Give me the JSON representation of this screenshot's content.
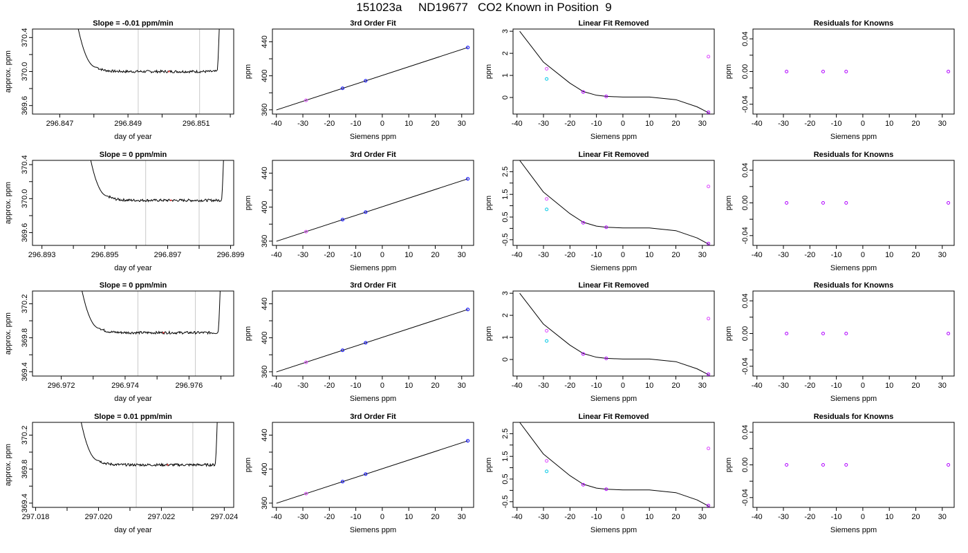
{
  "figure": {
    "title": "151023a     ND19677   CO2 Known in Position  9"
  },
  "colors": {
    "trace": "#000000",
    "vline": "#c8c8c8",
    "pt_blue": "#0000ff",
    "pt_purple": "#b000ff",
    "pt_cyan": "#00c8e6",
    "pt_magenta": "#dd44ff",
    "pt_red": "#ff4444"
  },
  "chart_data": [
    {
      "type": "line",
      "row": 1,
      "kind": "trace",
      "title": "Slope =  -0.01  ppm/min",
      "xlabel": "day of year",
      "ylabel": "approx. ppm",
      "xlim": [
        296.8462,
        296.8521
      ],
      "ylim": [
        369.5,
        370.5
      ],
      "xticks": [
        296.847,
        296.848,
        296.849,
        296.85,
        296.851,
        296.852
      ],
      "xticklabels": [
        "296.847",
        "",
        "296.849",
        "",
        "296.851",
        ""
      ],
      "yticks": [
        369.6,
        369.8,
        370.0,
        370.2,
        370.4
      ],
      "yticklabels": [
        "369.6",
        "",
        "370.0",
        "",
        "370.4"
      ],
      "vlines": [
        296.8493,
        296.8511
      ],
      "x_start": 296.8474,
      "x_end": 296.8517,
      "level": 370.0,
      "markers": [
        {
          "x": 296.8502,
          "y": 370.0,
          "color": "pt_red"
        }
      ]
    },
    {
      "type": "scatter",
      "row": 1,
      "kind": "fit",
      "title": "3rd Order Fit",
      "xlabel": "Siemens ppm",
      "ylabel": "ppm",
      "xlim": [
        -41.5,
        34.5
      ],
      "ylim": [
        355,
        455
      ],
      "xticks": [
        -40,
        -30,
        -20,
        -10,
        0,
        10,
        20,
        30
      ],
      "xticklabels": [
        "-40",
        "-30",
        "-20",
        "-10",
        "0",
        "10",
        "20",
        "30"
      ],
      "yticks": [
        360,
        380,
        400,
        420,
        440
      ],
      "yticklabels": [
        "360",
        "",
        "400",
        "",
        "440"
      ],
      "points": [
        {
          "x": -28.8,
          "y": 371.2,
          "color": "pt_magenta"
        },
        {
          "x": -15.0,
          "y": 385.3,
          "color": "pt_blue"
        },
        {
          "x": -6.3,
          "y": 394.1,
          "color": "pt_blue"
        },
        {
          "x": 32.3,
          "y": 433.3,
          "color": "pt_blue"
        }
      ]
    },
    {
      "type": "scatter",
      "row": 1,
      "kind": "lin",
      "title": "Linear Fit Removed",
      "xlabel": "Siemens ppm",
      "ylabel": "ppm",
      "xlim": [
        -41.5,
        34.5
      ],
      "ylim": [
        -0.75,
        3.1
      ],
      "xticks": [
        -40,
        -30,
        -20,
        -10,
        0,
        10,
        20,
        30
      ],
      "xticklabels": [
        "-40",
        "-30",
        "-20",
        "-10",
        "0",
        "10",
        "20",
        "30"
      ],
      "yticks": [
        0,
        1,
        2,
        3
      ],
      "yticklabels": [
        "0",
        "1",
        "2",
        "3"
      ],
      "curve": {
        "a": 0.000198,
        "b": 0.00389,
        "c": -0.0179,
        "d": 0.0,
        "xmin": -39,
        "xmax": 32.5
      },
      "points": [
        {
          "x": -28.8,
          "y": 1.3,
          "color": "pt_magenta"
        },
        {
          "x": -28.8,
          "y": 0.84,
          "color": "pt_cyan"
        },
        {
          "x": -15.0,
          "y": 0.25,
          "color": "pt_purple"
        },
        {
          "x": -6.3,
          "y": 0.05,
          "color": "pt_purple"
        },
        {
          "x": 32.3,
          "y": 1.85,
          "color": "pt_magenta"
        },
        {
          "x": 32.3,
          "y": -0.67,
          "color": "pt_purple"
        }
      ]
    },
    {
      "type": "scatter",
      "row": 1,
      "kind": "res",
      "title": "Residuals for Knowns",
      "xlabel": "Siemens ppm",
      "ylabel": "ppm",
      "xlim": [
        -41.5,
        34.5
      ],
      "ylim": [
        -0.052,
        0.052
      ],
      "xticks": [
        -40,
        -30,
        -20,
        -10,
        0,
        10,
        20,
        30
      ],
      "xticklabels": [
        "-40",
        "-30",
        "-20",
        "-10",
        "0",
        "10",
        "20",
        "30"
      ],
      "yticks": [
        -0.04,
        -0.02,
        0.0,
        0.02,
        0.04
      ],
      "yticklabels": [
        "-0.04",
        "",
        "0.00",
        "",
        "0.04"
      ],
      "points": [
        {
          "x": -28.8,
          "y": 0,
          "color": "pt_purple"
        },
        {
          "x": -15.0,
          "y": 0,
          "color": "pt_purple"
        },
        {
          "x": -6.3,
          "y": 0,
          "color": "pt_purple"
        },
        {
          "x": 32.3,
          "y": 0,
          "color": "pt_purple"
        }
      ]
    },
    {
      "type": "line",
      "row": 2,
      "kind": "trace",
      "title": "Slope =  0  ppm/min",
      "xlabel": "day of year",
      "ylabel": "approx. ppm",
      "xlim": [
        296.8927,
        296.8991
      ],
      "ylim": [
        369.45,
        370.45
      ],
      "xticks": [
        296.893,
        296.894,
        296.895,
        296.896,
        296.897,
        296.898,
        296.899
      ],
      "xticklabels": [
        "296.893",
        "",
        "296.895",
        "",
        "296.897",
        "",
        "296.899"
      ],
      "yticks": [
        369.6,
        369.8,
        370.0,
        370.2,
        370.4
      ],
      "yticklabels": [
        "369.6",
        "",
        "370.0",
        "",
        "370.4"
      ],
      "vlines": [
        296.8963,
        296.898
      ],
      "x_start": 296.8944,
      "x_end": 296.8988,
      "level": 369.98,
      "markers": [
        {
          "x": 296.8971,
          "y": 369.98,
          "color": "pt_red"
        }
      ]
    },
    {
      "type": "scatter",
      "row": 2,
      "kind": "fit",
      "title": "3rd Order Fit",
      "xlabel": "Siemens ppm",
      "ylabel": "ppm",
      "xlim": [
        -41.5,
        34.5
      ],
      "ylim": [
        355,
        455
      ],
      "xticks": [
        -40,
        -30,
        -20,
        -10,
        0,
        10,
        20,
        30
      ],
      "xticklabels": [
        "-40",
        "-30",
        "-20",
        "-10",
        "0",
        "10",
        "20",
        "30"
      ],
      "yticks": [
        360,
        380,
        400,
        420,
        440
      ],
      "yticklabels": [
        "360",
        "",
        "400",
        "",
        "440"
      ],
      "points": [
        {
          "x": -28.8,
          "y": 371.2,
          "color": "pt_magenta"
        },
        {
          "x": -15.0,
          "y": 385.3,
          "color": "pt_blue"
        },
        {
          "x": -6.3,
          "y": 394.1,
          "color": "pt_blue"
        },
        {
          "x": 32.3,
          "y": 433.3,
          "color": "pt_blue"
        }
      ]
    },
    {
      "type": "scatter",
      "row": 2,
      "kind": "lin",
      "title": "Linear Fit Removed",
      "xlabel": "Siemens ppm",
      "ylabel": "ppm",
      "xlim": [
        -41.5,
        34.5
      ],
      "ylim": [
        -0.75,
        3.0
      ],
      "xticks": [
        -40,
        -30,
        -20,
        -10,
        0,
        10,
        20,
        30
      ],
      "xticklabels": [
        "-40",
        "-30",
        "-20",
        "-10",
        "0",
        "10",
        "20",
        "30"
      ],
      "yticks": [
        -0.5,
        0.0,
        0.5,
        1.0,
        1.5,
        2.0,
        2.5
      ],
      "yticklabels": [
        "-0.5",
        "",
        "0.5",
        "",
        "1.5",
        "",
        "2.5"
      ],
      "curve": {
        "a": 0.000198,
        "b": 0.00389,
        "c": -0.0179,
        "d": 0.0,
        "xmin": -39,
        "xmax": 32.5
      },
      "points": [
        {
          "x": -28.8,
          "y": 1.3,
          "color": "pt_magenta"
        },
        {
          "x": -28.8,
          "y": 0.84,
          "color": "pt_cyan"
        },
        {
          "x": -15.0,
          "y": 0.25,
          "color": "pt_purple"
        },
        {
          "x": -6.3,
          "y": 0.05,
          "color": "pt_purple"
        },
        {
          "x": 32.3,
          "y": 1.85,
          "color": "pt_magenta"
        },
        {
          "x": 32.3,
          "y": -0.67,
          "color": "pt_purple"
        }
      ]
    },
    {
      "type": "scatter",
      "row": 2,
      "kind": "res",
      "title": "Residuals for Knowns",
      "xlabel": "Siemens ppm",
      "ylabel": "ppm",
      "xlim": [
        -41.5,
        34.5
      ],
      "ylim": [
        -0.052,
        0.052
      ],
      "xticks": [
        -40,
        -30,
        -20,
        -10,
        0,
        10,
        20,
        30
      ],
      "xticklabels": [
        "-40",
        "-30",
        "-20",
        "-10",
        "0",
        "10",
        "20",
        "30"
      ],
      "yticks": [
        -0.04,
        -0.02,
        0.0,
        0.02,
        0.04
      ],
      "yticklabels": [
        "-0.04",
        "",
        "0.00",
        "",
        "0.04"
      ],
      "points": [
        {
          "x": -28.8,
          "y": 0,
          "color": "pt_purple"
        },
        {
          "x": -15.0,
          "y": 0,
          "color": "pt_purple"
        },
        {
          "x": -6.3,
          "y": 0,
          "color": "pt_purple"
        },
        {
          "x": 32.3,
          "y": 0,
          "color": "pt_purple"
        }
      ]
    },
    {
      "type": "line",
      "row": 3,
      "kind": "trace",
      "title": "Slope =  0  ppm/min",
      "xlabel": "day of year",
      "ylabel": "approx. ppm",
      "xlim": [
        296.9711,
        296.9774
      ],
      "ylim": [
        369.35,
        370.35
      ],
      "xticks": [
        296.972,
        296.973,
        296.974,
        296.975,
        296.976,
        296.977
      ],
      "xticklabels": [
        "296.972",
        "",
        "296.974",
        "",
        "296.976",
        ""
      ],
      "yticks": [
        369.4,
        369.6,
        369.8,
        370.0,
        370.2
      ],
      "yticklabels": [
        "369.4",
        "",
        "369.8",
        "",
        "370.2"
      ],
      "vlines": [
        296.9744,
        296.9762
      ],
      "x_start": 296.9725,
      "x_end": 296.977,
      "level": 369.86,
      "markers": [
        {
          "x": 296.9752,
          "y": 369.86,
          "color": "pt_red"
        }
      ]
    },
    {
      "type": "scatter",
      "row": 3,
      "kind": "fit",
      "title": "3rd Order Fit",
      "xlabel": "Siemens ppm",
      "ylabel": "ppm",
      "xlim": [
        -41.5,
        34.5
      ],
      "ylim": [
        355,
        455
      ],
      "xticks": [
        -40,
        -30,
        -20,
        -10,
        0,
        10,
        20,
        30
      ],
      "xticklabels": [
        "-40",
        "-30",
        "-20",
        "-10",
        "0",
        "10",
        "20",
        "30"
      ],
      "yticks": [
        360,
        380,
        400,
        420,
        440
      ],
      "yticklabels": [
        "360",
        "",
        "400",
        "",
        "440"
      ],
      "points": [
        {
          "x": -28.8,
          "y": 371.2,
          "color": "pt_magenta"
        },
        {
          "x": -15.0,
          "y": 385.3,
          "color": "pt_blue"
        },
        {
          "x": -6.3,
          "y": 394.1,
          "color": "pt_blue"
        },
        {
          "x": 32.3,
          "y": 433.3,
          "color": "pt_blue"
        }
      ]
    },
    {
      "type": "scatter",
      "row": 3,
      "kind": "lin",
      "title": "Linear Fit Removed",
      "xlabel": "Siemens ppm",
      "ylabel": "ppm",
      "xlim": [
        -41.5,
        34.5
      ],
      "ylim": [
        -0.75,
        3.1
      ],
      "xticks": [
        -40,
        -30,
        -20,
        -10,
        0,
        10,
        20,
        30
      ],
      "xticklabels": [
        "-40",
        "-30",
        "-20",
        "-10",
        "0",
        "10",
        "20",
        "30"
      ],
      "yticks": [
        0,
        1,
        2,
        3
      ],
      "yticklabels": [
        "0",
        "1",
        "2",
        "3"
      ],
      "curve": {
        "a": 0.000198,
        "b": 0.00389,
        "c": -0.0179,
        "d": 0.0,
        "xmin": -39,
        "xmax": 32.5
      },
      "points": [
        {
          "x": -28.8,
          "y": 1.3,
          "color": "pt_magenta"
        },
        {
          "x": -28.8,
          "y": 0.84,
          "color": "pt_cyan"
        },
        {
          "x": -15.0,
          "y": 0.25,
          "color": "pt_purple"
        },
        {
          "x": -6.3,
          "y": 0.05,
          "color": "pt_purple"
        },
        {
          "x": 32.3,
          "y": 1.85,
          "color": "pt_magenta"
        },
        {
          "x": 32.3,
          "y": -0.67,
          "color": "pt_purple"
        }
      ]
    },
    {
      "type": "scatter",
      "row": 3,
      "kind": "res",
      "title": "Residuals for Knowns",
      "xlabel": "Siemens ppm",
      "ylabel": "ppm",
      "xlim": [
        -41.5,
        34.5
      ],
      "ylim": [
        -0.052,
        0.052
      ],
      "xticks": [
        -40,
        -30,
        -20,
        -10,
        0,
        10,
        20,
        30
      ],
      "xticklabels": [
        "-40",
        "-30",
        "-20",
        "-10",
        "0",
        "10",
        "20",
        "30"
      ],
      "yticks": [
        -0.04,
        -0.02,
        0.0,
        0.02,
        0.04
      ],
      "yticklabels": [
        "-0.04",
        "",
        "0.00",
        "",
        "0.04"
      ],
      "points": [
        {
          "x": -28.8,
          "y": 0,
          "color": "pt_purple"
        },
        {
          "x": -15.0,
          "y": 0,
          "color": "pt_purple"
        },
        {
          "x": -6.3,
          "y": 0,
          "color": "pt_purple"
        },
        {
          "x": 32.3,
          "y": 0,
          "color": "pt_purple"
        }
      ]
    },
    {
      "type": "line",
      "row": 4,
      "kind": "trace",
      "title": "Slope =  0.01  ppm/min",
      "xlabel": "day of year",
      "ylabel": "approx. ppm",
      "xlim": [
        297.0179,
        297.0243
      ],
      "ylim": [
        369.35,
        370.35
      ],
      "xticks": [
        297.018,
        297.019,
        297.02,
        297.021,
        297.022,
        297.023,
        297.024
      ],
      "xticklabels": [
        "297.018",
        "",
        "297.020",
        "",
        "297.022",
        "",
        "297.024"
      ],
      "yticks": [
        369.4,
        369.6,
        369.8,
        370.0,
        370.2
      ],
      "yticklabels": [
        "369.4",
        "",
        "369.8",
        "",
        "370.2"
      ],
      "vlines": [
        297.0212,
        297.023
      ],
      "x_start": 297.0193,
      "x_end": 297.0238,
      "level": 369.85,
      "markers": [
        {
          "x": 297.0222,
          "y": 369.85,
          "color": "pt_red"
        }
      ]
    },
    {
      "type": "scatter",
      "row": 4,
      "kind": "fit",
      "title": "3rd Order Fit",
      "xlabel": "Siemens ppm",
      "ylabel": "ppm",
      "xlim": [
        -41.5,
        34.5
      ],
      "ylim": [
        355,
        455
      ],
      "xticks": [
        -40,
        -30,
        -20,
        -10,
        0,
        10,
        20,
        30
      ],
      "xticklabels": [
        "-40",
        "-30",
        "-20",
        "-10",
        "0",
        "10",
        "20",
        "30"
      ],
      "yticks": [
        360,
        380,
        400,
        420,
        440
      ],
      "yticklabels": [
        "360",
        "",
        "400",
        "",
        "440"
      ],
      "points": [
        {
          "x": -28.8,
          "y": 371.2,
          "color": "pt_magenta"
        },
        {
          "x": -15.0,
          "y": 385.3,
          "color": "pt_blue"
        },
        {
          "x": -6.3,
          "y": 394.1,
          "color": "pt_blue"
        },
        {
          "x": 32.3,
          "y": 433.3,
          "color": "pt_blue"
        }
      ]
    },
    {
      "type": "scatter",
      "row": 4,
      "kind": "lin",
      "title": "Linear Fit Removed",
      "xlabel": "Siemens ppm",
      "ylabel": "ppm",
      "xlim": [
        -41.5,
        34.5
      ],
      "ylim": [
        -0.75,
        3.0
      ],
      "xticks": [
        -40,
        -30,
        -20,
        -10,
        0,
        10,
        20,
        30
      ],
      "xticklabels": [
        "-40",
        "-30",
        "-20",
        "-10",
        "0",
        "10",
        "20",
        "30"
      ],
      "yticks": [
        -0.5,
        0.0,
        0.5,
        1.0,
        1.5,
        2.0,
        2.5
      ],
      "yticklabels": [
        "-0.5",
        "",
        "0.5",
        "",
        "1.5",
        "",
        "2.5"
      ],
      "curve": {
        "a": 0.000198,
        "b": 0.00389,
        "c": -0.0179,
        "d": 0.0,
        "xmin": -39,
        "xmax": 32.5
      },
      "points": [
        {
          "x": -28.8,
          "y": 1.3,
          "color": "pt_magenta"
        },
        {
          "x": -28.8,
          "y": 0.84,
          "color": "pt_cyan"
        },
        {
          "x": -15.0,
          "y": 0.25,
          "color": "pt_purple"
        },
        {
          "x": -6.3,
          "y": 0.05,
          "color": "pt_purple"
        },
        {
          "x": 32.3,
          "y": 1.85,
          "color": "pt_magenta"
        },
        {
          "x": 32.3,
          "y": -0.67,
          "color": "pt_purple"
        }
      ]
    },
    {
      "type": "scatter",
      "row": 4,
      "kind": "res",
      "title": "Residuals for Knowns",
      "xlabel": "Siemens ppm",
      "ylabel": "ppm",
      "xlim": [
        -41.5,
        34.5
      ],
      "ylim": [
        -0.052,
        0.052
      ],
      "xticks": [
        -40,
        -30,
        -20,
        -10,
        0,
        10,
        20,
        30
      ],
      "xticklabels": [
        "-40",
        "-30",
        "-20",
        "-10",
        "0",
        "10",
        "20",
        "30"
      ],
      "yticks": [
        -0.04,
        -0.02,
        0.0,
        0.02,
        0.04
      ],
      "yticklabels": [
        "-0.04",
        "",
        "0.00",
        "",
        "0.04"
      ],
      "points": [
        {
          "x": -28.8,
          "y": 0,
          "color": "pt_purple"
        },
        {
          "x": -15.0,
          "y": 0,
          "color": "pt_purple"
        },
        {
          "x": -6.3,
          "y": 0,
          "color": "pt_purple"
        },
        {
          "x": 32.3,
          "y": 0,
          "color": "pt_purple"
        }
      ]
    }
  ]
}
